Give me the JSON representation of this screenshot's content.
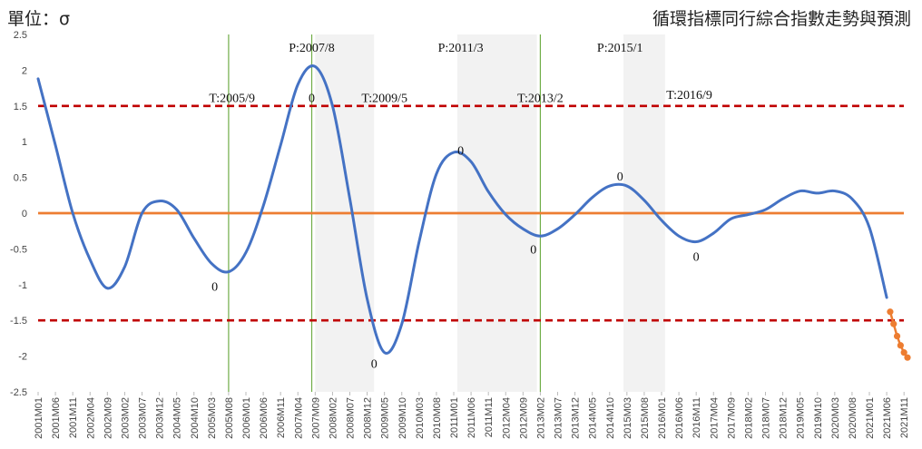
{
  "header": {
    "unit_label": "單位：σ",
    "title": "循環指標同行綜合指數走勢與預測"
  },
  "chart_data": {
    "type": "line",
    "title": "循環指標同行綜合指數走勢與預測",
    "ylim": [
      -2.5,
      2.5
    ],
    "y_ticks": [
      2.5,
      2,
      1.5,
      1,
      0.5,
      0,
      -0.5,
      -1,
      -1.5,
      -2,
      -2.5
    ],
    "x_tick_labels": [
      "2001M01",
      "2001M06",
      "2001M11",
      "2002M04",
      "2002M09",
      "2003M02",
      "2003M07",
      "2003M12",
      "2004M05",
      "2004M10",
      "2005M03",
      "2005M08",
      "2006M01",
      "2006M06",
      "2006M11",
      "2007M04",
      "2007M09",
      "2008M02",
      "2008M07",
      "2008M12",
      "2009M05",
      "2009M10",
      "2010M03",
      "2010M08",
      "2011M01",
      "2011M06",
      "2011M11",
      "2012M04",
      "2012M09",
      "2013M02",
      "2013M07",
      "2013M12",
      "2014M05",
      "2014M10",
      "2015M03",
      "2015M08",
      "2016M01",
      "2016M06",
      "2016M11",
      "2017M04",
      "2017M09",
      "2018M02",
      "2018M07",
      "2018M12",
      "2019M05",
      "2019M10",
      "2020M03",
      "2020M08",
      "2021M01",
      "2021M06",
      "2021M11"
    ],
    "series": [
      {
        "name": "",
        "color": "#4472C4",
        "points": [
          [
            "2001M01",
            1.88
          ],
          [
            "2001M06",
            0.95
          ],
          [
            "2001M11",
            0.0
          ],
          [
            "2002M04",
            -0.65
          ],
          [
            "2002M09",
            -1.05
          ],
          [
            "2003M02",
            -0.75
          ],
          [
            "2003M07",
            0.0
          ],
          [
            "2003M12",
            0.17
          ],
          [
            "2004M05",
            0.05
          ],
          [
            "2004M10",
            -0.35
          ],
          [
            "2005M03",
            -0.7
          ],
          [
            "2005M08",
            -0.82
          ],
          [
            "2006M01",
            -0.55
          ],
          [
            "2006M06",
            0.1
          ],
          [
            "2006M11",
            0.95
          ],
          [
            "2007M04",
            1.8
          ],
          [
            "2007M09",
            2.05
          ],
          [
            "2008M02",
            1.5
          ],
          [
            "2008M07",
            0.2
          ],
          [
            "2008M12",
            -1.2
          ],
          [
            "2009M05",
            -1.95
          ],
          [
            "2009M10",
            -1.55
          ],
          [
            "2010M03",
            -0.4
          ],
          [
            "2010M08",
            0.55
          ],
          [
            "2011M01",
            0.85
          ],
          [
            "2011M06",
            0.72
          ],
          [
            "2011M11",
            0.3
          ],
          [
            "2012M04",
            -0.02
          ],
          [
            "2012M09",
            -0.22
          ],
          [
            "2013M02",
            -0.32
          ],
          [
            "2013M07",
            -0.22
          ],
          [
            "2013M12",
            -0.02
          ],
          [
            "2014M05",
            0.22
          ],
          [
            "2014M10",
            0.38
          ],
          [
            "2015M03",
            0.38
          ],
          [
            "2015M08",
            0.18
          ],
          [
            "2016M01",
            -0.1
          ],
          [
            "2016M06",
            -0.32
          ],
          [
            "2016M11",
            -0.4
          ],
          [
            "2017M04",
            -0.28
          ],
          [
            "2017M09",
            -0.08
          ],
          [
            "2018M02",
            -0.02
          ],
          [
            "2018M07",
            0.05
          ],
          [
            "2018M12",
            0.2
          ],
          [
            "2019M05",
            0.31
          ],
          [
            "2019M10",
            0.28
          ],
          [
            "2020M03",
            0.31
          ],
          [
            "2020M08",
            0.2
          ],
          [
            "2021M01",
            -0.2
          ],
          [
            "2021M06",
            -1.18
          ]
        ]
      },
      {
        "name": "",
        "color": "#ED7D31",
        "markers": true,
        "points": [
          [
            "2021M07",
            -1.38
          ],
          [
            "2021M08",
            -1.55
          ],
          [
            "2021M09",
            -1.72
          ],
          [
            "2021M10",
            -1.85
          ],
          [
            "2021M11",
            -1.95
          ],
          [
            "2021M12",
            -2.02
          ]
        ]
      }
    ],
    "reference_lines": [
      {
        "y": 0,
        "color": "#ED7D31",
        "style": "solid"
      },
      {
        "y": 1.5,
        "color": "#C00000",
        "style": "dashed"
      },
      {
        "y": -1.5,
        "color": "#C00000",
        "style": "dashed"
      }
    ],
    "shaded_periods": [
      {
        "start": "2007M09",
        "end": "2009M02"
      },
      {
        "start": "2011M02",
        "end": "2013M01"
      },
      {
        "start": "2015M02",
        "end": "2016M02"
      }
    ],
    "vertical_markers": [
      "2005M08",
      "2007M08",
      "2013M02"
    ],
    "annotations": [
      {
        "text": "P:2007/8",
        "x": "2007M08",
        "y": 2.32
      },
      {
        "text": "P:2011/3",
        "x": "2011M03",
        "y": 2.32
      },
      {
        "text": "P:2015/1",
        "x": "2015M01",
        "y": 2.32
      },
      {
        "text": "T:2005/9",
        "x": "2005M09",
        "y": 1.62
      },
      {
        "text": "T:2009/5",
        "x": "2009M05",
        "y": 1.62
      },
      {
        "text": "T:2013/2",
        "x": "2013M02",
        "y": 1.62
      },
      {
        "text": "T:2016/9",
        "x": "2016M09",
        "y": 1.66
      },
      {
        "text": "0",
        "x": "2007M08",
        "y": 1.62
      },
      {
        "text": "0",
        "x": "2011M03",
        "y": 0.88
      },
      {
        "text": "0",
        "x": "2015M01",
        "y": 0.52
      },
      {
        "text": "0",
        "x": "2005M04",
        "y": -1.02
      },
      {
        "text": "0",
        "x": "2009M02",
        "y": -2.1
      },
      {
        "text": "0",
        "x": "2012M12",
        "y": -0.5
      },
      {
        "text": "0",
        "x": "2016M11",
        "y": -0.6
      }
    ]
  }
}
